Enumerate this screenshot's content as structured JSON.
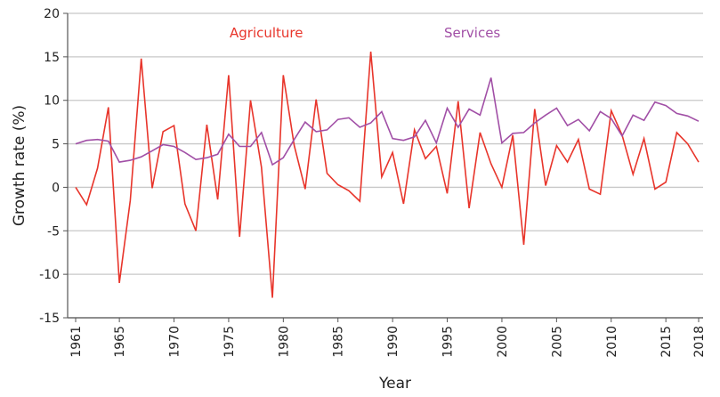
{
  "chart_data": {
    "type": "line",
    "title": "",
    "xlabel": "Year",
    "ylabel": "Growth rate (%)",
    "ylim": [
      -15,
      20
    ],
    "xlim": [
      1961,
      2018
    ],
    "grid": true,
    "yticks": [
      20,
      15,
      10,
      5,
      0,
      -5,
      -10,
      -15
    ],
    "xticks": [
      1961,
      1965,
      1970,
      1975,
      1980,
      1985,
      1990,
      1995,
      2000,
      2005,
      2010,
      2015,
      2018
    ],
    "legend_placement": "inline labels at top",
    "x_start": 1961,
    "series": [
      {
        "name": "Agriculture",
        "color": "#e8352b",
        "values": [
          0,
          -2,
          2.2,
          9.2,
          -11,
          -1.5,
          14.8,
          -0.1,
          6.4,
          7.1,
          -1.9,
          -5,
          7.2,
          -1.4,
          12.9,
          -5.7,
          10,
          2.3,
          -12.7,
          12.9,
          4.8,
          -0.2,
          10.1,
          1.6,
          0.3,
          -0.4,
          -1.6,
          15.6,
          1.2,
          4,
          -1.9,
          6.6,
          3.3,
          4.7,
          -0.7,
          9.9,
          -2.4,
          6.3,
          2.7,
          0,
          6,
          -6.6,
          9,
          0.2,
          4.8,
          2.9,
          5.5,
          -0.2,
          -0.8,
          8.8,
          6,
          1.5,
          5.6,
          -0.2,
          0.6,
          6.3,
          5,
          2.9
        ]
      },
      {
        "name": "Services",
        "color": "#a14fa6",
        "values": [
          5.0,
          5.4,
          5.5,
          5.3,
          2.9,
          3.1,
          3.5,
          4.2,
          4.9,
          4.7,
          4.0,
          3.2,
          3.4,
          3.8,
          6.1,
          4.7,
          4.7,
          6.3,
          2.6,
          3.4,
          5.5,
          7.5,
          6.4,
          6.6,
          7.8,
          8.0,
          6.9,
          7.4,
          8.7,
          5.6,
          5.4,
          5.8,
          7.7,
          5.1,
          9.1,
          6.9,
          9.0,
          8.3,
          12.6,
          5.1,
          6.2,
          6.3,
          7.4,
          8.3,
          9.1,
          7.1,
          7.8,
          6.5,
          8.7,
          7.9,
          5.9,
          8.3,
          7.7,
          9.8,
          9.4,
          8.5,
          8.2,
          7.6
        ]
      }
    ]
  }
}
